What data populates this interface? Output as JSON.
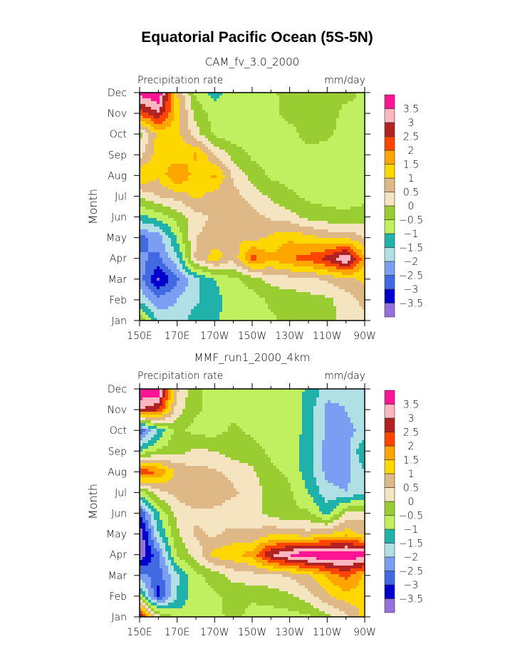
{
  "title": "Equatorial Pacific Ocean (5S-5N)",
  "colors": [
    "#9370DB",
    "#0000CD",
    "#4169E1",
    "#7B9EF2",
    "#B0E0E6",
    "#20B2AA",
    "#C0F060",
    "#9ACD32",
    "#F5E4C0",
    "#DEB887",
    "#FFD700",
    "#FFA500",
    "#FF4500",
    "#B22222",
    "#FFB6C1",
    "#FF1493"
  ],
  "levels": [
    -3.5,
    -3,
    -2.5,
    -2,
    -1.5,
    -1,
    -0.5,
    0,
    0.5,
    1,
    1.5,
    2,
    2.5,
    3,
    3.5
  ],
  "level_labels": [
    "−3.5",
    "−3",
    "−2.5",
    "−2",
    "−1.5",
    "−1",
    "−0.5",
    "0",
    "0.5",
    "1",
    "1.5",
    "2",
    "2.5",
    "3",
    "3.5"
  ],
  "chart_data": [
    {
      "type": "heatmap",
      "subtitle": "CAM_fv_3.0_2000",
      "left_label": "Precipitation rate",
      "right_label": "mm/day",
      "ylabel": "Month",
      "y_tick_labels": [
        "Jan",
        "Feb",
        "Mar",
        "Apr",
        "May",
        "Jun",
        "Jul",
        "Aug",
        "Sep",
        "Oct",
        "Nov",
        "Dec"
      ],
      "x_tick_labels": [
        "150E",
        "170E",
        "170W",
        "150W",
        "130W",
        "110W",
        "90W"
      ],
      "x_lon": [
        150,
        160,
        170,
        180,
        190,
        200,
        210,
        220,
        230,
        240,
        250,
        260,
        270
      ],
      "xlim": [
        150,
        270
      ],
      "values": [
        [
          0.0,
          -1.7,
          -1.8,
          -1.2,
          -1.1,
          -0.7,
          -0.7,
          -0.6,
          -0.3,
          -0.3,
          -0.2,
          0.2,
          0.3
        ],
        [
          -1.7,
          -2.3,
          -2.0,
          -1.6,
          -1.2,
          -0.7,
          -0.7,
          -0.4,
          -0.3,
          -0.2,
          -0.1,
          0.2,
          0.7
        ],
        [
          -2.2,
          -3.6,
          -2.6,
          -1.6,
          -1.0,
          -0.6,
          -0.3,
          0.2,
          0.3,
          0.4,
          0.6,
          0.9,
          1.1
        ],
        [
          -2.4,
          -2.6,
          -1.6,
          0.6,
          1.3,
          0.6,
          2.3,
          1.6,
          2.0,
          2.2,
          2.7,
          3.6,
          1.6
        ],
        [
          -2.7,
          -2.3,
          -0.9,
          0.5,
          0.7,
          1.0,
          0.8,
          1.1,
          1.4,
          1.2,
          0.9,
          0.9,
          0.5
        ],
        [
          -1.2,
          -0.8,
          -0.3,
          0.3,
          0.6,
          0.7,
          0.7,
          0.4,
          0.2,
          -0.2,
          -0.3,
          -0.4,
          -0.2
        ],
        [
          0.1,
          0.5,
          0.7,
          1.1,
          0.8,
          0.7,
          0.3,
          -0.1,
          -0.4,
          -0.6,
          -0.7,
          -0.7,
          -0.7
        ],
        [
          1.6,
          1.1,
          2.1,
          1.2,
          1.6,
          0.4,
          -0.2,
          -0.6,
          -0.7,
          -0.7,
          -0.7,
          -0.7,
          -0.7
        ],
        [
          0.3,
          1.3,
          1.1,
          1.6,
          0.5,
          -0.2,
          -0.6,
          -0.7,
          -0.7,
          -0.7,
          -0.7,
          -0.7,
          -0.7
        ],
        [
          -0.2,
          1.2,
          1.2,
          0.2,
          -0.6,
          -0.8,
          -0.7,
          -0.7,
          -0.7,
          -0.3,
          -0.4,
          -0.7,
          -0.7
        ],
        [
          2.2,
          3.0,
          1.3,
          -0.2,
          -0.7,
          -0.7,
          -0.7,
          -0.7,
          -0.3,
          -0.3,
          -0.2,
          -0.7,
          -0.7
        ],
        [
          3.8,
          4.0,
          1.0,
          -0.6,
          -1.2,
          -0.7,
          -0.7,
          -0.6,
          -0.3,
          -0.3,
          -0.3,
          -0.3,
          -0.6
        ]
      ]
    },
    {
      "type": "heatmap",
      "subtitle": "MMF_run1_2000_4km",
      "left_label": "Precipitation rate",
      "right_label": "mm/day",
      "ylabel": "Month",
      "y_tick_labels": [
        "Jan",
        "Feb",
        "Mar",
        "Apr",
        "May",
        "Jun",
        "Jul",
        "Aug",
        "Sep",
        "Oct",
        "Nov",
        "Dec"
      ],
      "x_tick_labels": [
        "150E",
        "170E",
        "170W",
        "150W",
        "130W",
        "110W",
        "90W"
      ],
      "x_lon": [
        150,
        160,
        170,
        180,
        190,
        200,
        210,
        220,
        230,
        240,
        250,
        260,
        270
      ],
      "xlim": [
        150,
        270
      ],
      "values": [
        [
          3.0,
          0.2,
          -0.7,
          -0.7,
          -0.7,
          -0.3,
          -0.7,
          -0.7,
          -0.7,
          -0.6,
          -0.2,
          0.3,
          1.2
        ],
        [
          -0.7,
          -3.2,
          -1.5,
          -0.7,
          -0.6,
          -0.3,
          -0.4,
          -0.3,
          -0.1,
          0.3,
          0.9,
          1.3,
          1.2
        ],
        [
          -2.3,
          -2.8,
          -1.6,
          -0.6,
          -0.3,
          0.2,
          0.3,
          0.4,
          0.6,
          0.9,
          1.6,
          2.2,
          1.4
        ],
        [
          -4.0,
          -2.6,
          -0.4,
          0.2,
          1.2,
          1.4,
          1.7,
          3.0,
          3.6,
          4.0,
          4.0,
          4.0,
          3.8
        ],
        [
          -4.0,
          -1.5,
          -0.1,
          0.6,
          0.4,
          0.7,
          0.6,
          0.9,
          0.8,
          0.7,
          1.0,
          1.3,
          0.8
        ],
        [
          -3.0,
          -1.0,
          0.2,
          0.4,
          0.3,
          0.1,
          0.2,
          -0.2,
          -0.4,
          -0.4,
          -1.2,
          0.1,
          0.3
        ],
        [
          -0.7,
          0.3,
          0.7,
          0.9,
          1.0,
          0.6,
          0.3,
          -0.2,
          -0.4,
          -1.0,
          -1.8,
          -2.0,
          -1.5
        ],
        [
          2.5,
          2.0,
          0.9,
          0.7,
          0.6,
          0.3,
          0.1,
          -0.4,
          -0.6,
          -1.3,
          -2.2,
          -2.2,
          -1.5
        ],
        [
          -1.0,
          -0.4,
          -0.2,
          0.1,
          0.0,
          -0.2,
          -0.3,
          -0.6,
          -0.7,
          -1.3,
          -2.3,
          -2.2,
          -1.0
        ],
        [
          -3.0,
          -1.4,
          -0.3,
          -0.7,
          -0.7,
          -0.4,
          -0.6,
          -0.7,
          -0.7,
          -1.2,
          -2.1,
          -2.2,
          -1.8
        ],
        [
          3.0,
          2.6,
          0.2,
          -0.4,
          -0.7,
          -0.7,
          -0.7,
          -0.7,
          -0.7,
          -1.2,
          -2.2,
          -2.0,
          -1.5
        ],
        [
          4.0,
          4.0,
          0.6,
          -0.4,
          -0.7,
          -0.7,
          -0.7,
          -0.7,
          -0.7,
          -1.1,
          -1.7,
          -1.8,
          -1.5
        ]
      ]
    }
  ]
}
